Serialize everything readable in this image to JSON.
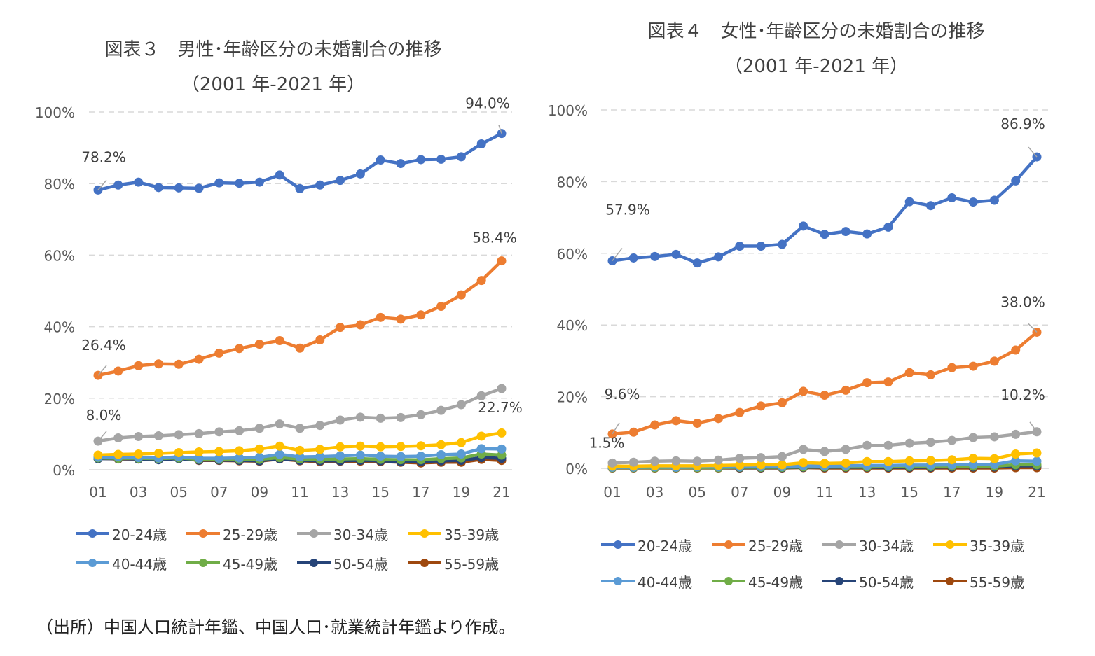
{
  "source_note": "（出所）中国人口統計年鑑、中国人口･就業統計年鑑より作成。",
  "series_styles": [
    {
      "name": "20-24歳",
      "color": "#4472C4"
    },
    {
      "name": "25-29歳",
      "color": "#ED7D31"
    },
    {
      "name": "30-34歳",
      "color": "#A5A5A5"
    },
    {
      "name": "35-39歳",
      "color": "#FFC000"
    },
    {
      "name": "40-44歳",
      "color": "#5B9BD5"
    },
    {
      "name": "45-49歳",
      "color": "#70AD47"
    },
    {
      "name": "50-54歳",
      "color": "#264478"
    },
    {
      "name": "55-59歳",
      "color": "#9E480E"
    }
  ],
  "chart_data": [
    {
      "type": "line",
      "title_line1": "図表３　男性･年齢区分の未婚割合の推移",
      "title_line2": "（2001 年-2021 年）",
      "x": [
        "01",
        "02",
        "03",
        "04",
        "05",
        "06",
        "07",
        "08",
        "09",
        "10",
        "11",
        "12",
        "13",
        "14",
        "15",
        "16",
        "17",
        "18",
        "19",
        "20",
        "21"
      ],
      "x_tick_labels": [
        "01",
        "03",
        "05",
        "07",
        "09",
        "11",
        "13",
        "15",
        "17",
        "19",
        "21"
      ],
      "y_tick_labels": [
        "0%",
        "20%",
        "40%",
        "60%",
        "80%",
        "100%"
      ],
      "ylim": [
        0,
        100
      ],
      "grid": true,
      "legend_position": "bottom",
      "series": [
        {
          "name": "20-24歳",
          "values": [
            78.2,
            79.6,
            80.4,
            78.9,
            78.8,
            78.7,
            80.2,
            80.1,
            80.4,
            82.4,
            78.6,
            79.6,
            80.9,
            82.7,
            86.6,
            85.6,
            86.7,
            86.8,
            87.5,
            91.1,
            94.0
          ]
        },
        {
          "name": "25-29歳",
          "values": [
            26.4,
            27.6,
            29.1,
            29.6,
            29.5,
            30.9,
            32.6,
            33.9,
            35.1,
            36.1,
            34.0,
            36.3,
            39.8,
            40.5,
            42.6,
            42.1,
            43.3,
            45.7,
            48.9,
            52.9,
            58.4
          ]
        },
        {
          "name": "30-34歳",
          "values": [
            8.0,
            8.9,
            9.3,
            9.5,
            9.8,
            10.1,
            10.6,
            10.9,
            11.6,
            12.8,
            11.6,
            12.4,
            13.9,
            14.7,
            14.4,
            14.6,
            15.4,
            16.6,
            18.2,
            20.7,
            22.7
          ]
        },
        {
          "name": "35-39歳",
          "values": [
            4.1,
            4.3,
            4.4,
            4.6,
            4.8,
            5.0,
            5.1,
            5.3,
            5.8,
            6.6,
            5.4,
            5.7,
            6.4,
            6.6,
            6.4,
            6.5,
            6.7,
            7.0,
            7.6,
            9.4,
            10.3
          ]
        },
        {
          "name": "40-44歳",
          "values": [
            3.5,
            3.6,
            3.4,
            3.3,
            3.6,
            3.2,
            3.2,
            3.3,
            3.5,
            4.3,
            3.6,
            3.7,
            3.9,
            4.1,
            3.8,
            3.7,
            3.8,
            4.2,
            4.4,
            5.9,
            5.8
          ]
        },
        {
          "name": "45-49歳",
          "values": [
            3.3,
            3.2,
            3.2,
            3.1,
            3.3,
            2.9,
            2.9,
            2.9,
            2.9,
            3.4,
            3.0,
            2.9,
            3.0,
            3.1,
            2.9,
            2.8,
            2.8,
            3.1,
            3.3,
            4.4,
            4.1
          ]
        },
        {
          "name": "50-54歳",
          "values": [
            3.1,
            3.1,
            3.0,
            2.8,
            3.1,
            2.7,
            2.7,
            2.6,
            2.5,
            3.1,
            2.6,
            2.5,
            2.5,
            2.6,
            2.5,
            2.3,
            2.3,
            2.5,
            2.6,
            3.4,
            3.2
          ]
        },
        {
          "name": "55-59歳",
          "values": [
            3.2,
            3.0,
            3.0,
            2.9,
            3.3,
            2.6,
            2.6,
            2.5,
            2.4,
            3.0,
            2.5,
            2.3,
            2.4,
            2.4,
            2.3,
            2.1,
            1.9,
            2.1,
            2.1,
            2.9,
            2.6
          ]
        }
      ],
      "annotations": [
        {
          "text": "78.2%",
          "series": "20-24歳",
          "x": "01"
        },
        {
          "text": "94.0%",
          "series": "20-24歳",
          "x": "21"
        },
        {
          "text": "26.4%",
          "series": "25-29歳",
          "x": "01"
        },
        {
          "text": "58.4%",
          "series": "25-29歳",
          "x": "21"
        },
        {
          "text": "8.0%",
          "series": "30-34歳",
          "x": "01"
        },
        {
          "text": "22.7%",
          "series": "30-34歳",
          "x": "21"
        }
      ]
    },
    {
      "type": "line",
      "title_line1": "図表４　女性･年齢区分の未婚割合の推移",
      "title_line2": "（2001 年-2021 年）",
      "x": [
        "01",
        "02",
        "03",
        "04",
        "05",
        "06",
        "07",
        "08",
        "09",
        "10",
        "11",
        "12",
        "13",
        "14",
        "15",
        "16",
        "17",
        "18",
        "19",
        "20",
        "21"
      ],
      "x_tick_labels": [
        "01",
        "03",
        "05",
        "07",
        "09",
        "11",
        "13",
        "15",
        "17",
        "19",
        "21"
      ],
      "y_tick_labels": [
        "0%",
        "20%",
        "40%",
        "60%",
        "80%",
        "100%"
      ],
      "ylim": [
        0,
        100
      ],
      "grid": true,
      "legend_position": "bottom",
      "series": [
        {
          "name": "20-24歳",
          "values": [
            57.9,
            58.7,
            59.1,
            59.7,
            57.3,
            59.0,
            62.0,
            62.0,
            62.5,
            67.6,
            65.3,
            66.1,
            65.4,
            67.3,
            74.4,
            73.3,
            75.5,
            74.3,
            74.8,
            80.2,
            86.9
          ]
        },
        {
          "name": "25-29歳",
          "values": [
            9.6,
            10.1,
            12.1,
            13.3,
            12.6,
            13.9,
            15.6,
            17.4,
            18.3,
            21.5,
            20.4,
            21.8,
            23.9,
            24.1,
            26.7,
            26.1,
            28.1,
            28.5,
            29.9,
            33.0,
            38.0
          ]
        },
        {
          "name": "30-34歳",
          "values": [
            1.5,
            1.7,
            2.0,
            2.1,
            2.0,
            2.3,
            2.8,
            3.0,
            3.3,
            5.3,
            4.7,
            5.3,
            6.4,
            6.4,
            7.0,
            7.3,
            7.8,
            8.6,
            8.8,
            9.5,
            10.2
          ]
        },
        {
          "name": "35-39歳",
          "values": [
            0.6,
            0.6,
            0.7,
            0.7,
            0.7,
            0.8,
            0.9,
            1.0,
            1.0,
            1.6,
            1.4,
            1.5,
            1.9,
            1.9,
            2.1,
            2.2,
            2.4,
            2.8,
            2.7,
            4.0,
            4.3
          ]
        },
        {
          "name": "40-44歳",
          "values": [
            0.3,
            0.3,
            0.4,
            0.3,
            0.4,
            0.4,
            0.4,
            0.5,
            0.5,
            0.7,
            0.6,
            0.7,
            0.8,
            0.8,
            0.9,
            0.9,
            1.0,
            1.1,
            1.1,
            2.1,
            2.0
          ]
        },
        {
          "name": "45-49歳",
          "values": [
            0.2,
            0.2,
            0.2,
            0.2,
            0.2,
            0.2,
            0.3,
            0.3,
            0.3,
            0.4,
            0.4,
            0.4,
            0.4,
            0.5,
            0.5,
            0.5,
            0.6,
            0.6,
            0.6,
            1.0,
            1.0
          ]
        },
        {
          "name": "50-54歳",
          "values": [
            0.2,
            0.2,
            0.2,
            0.2,
            0.2,
            0.2,
            0.2,
            0.2,
            0.2,
            0.3,
            0.3,
            0.3,
            0.3,
            0.3,
            0.3,
            0.3,
            0.4,
            0.4,
            0.4,
            0.7,
            0.7
          ]
        },
        {
          "name": "55-59歳",
          "values": [
            0.1,
            0.1,
            0.1,
            0.1,
            0.1,
            0.1,
            0.1,
            0.1,
            0.1,
            0.2,
            0.1,
            0.1,
            0.1,
            0.1,
            0.1,
            0.1,
            0.1,
            0.1,
            0.1,
            0.2,
            0.2
          ]
        }
      ],
      "annotations": [
        {
          "text": "57.9%",
          "series": "20-24歳",
          "x": "01"
        },
        {
          "text": "86.9%",
          "series": "20-24歳",
          "x": "21"
        },
        {
          "text": "9.6%",
          "series": "25-29歳",
          "x": "01"
        },
        {
          "text": "38.0%",
          "series": "25-29歳",
          "x": "21"
        },
        {
          "text": "1.5%",
          "series": "30-34歳",
          "x": "01"
        },
        {
          "text": "10.2%",
          "series": "30-34歳",
          "x": "21"
        }
      ]
    }
  ]
}
